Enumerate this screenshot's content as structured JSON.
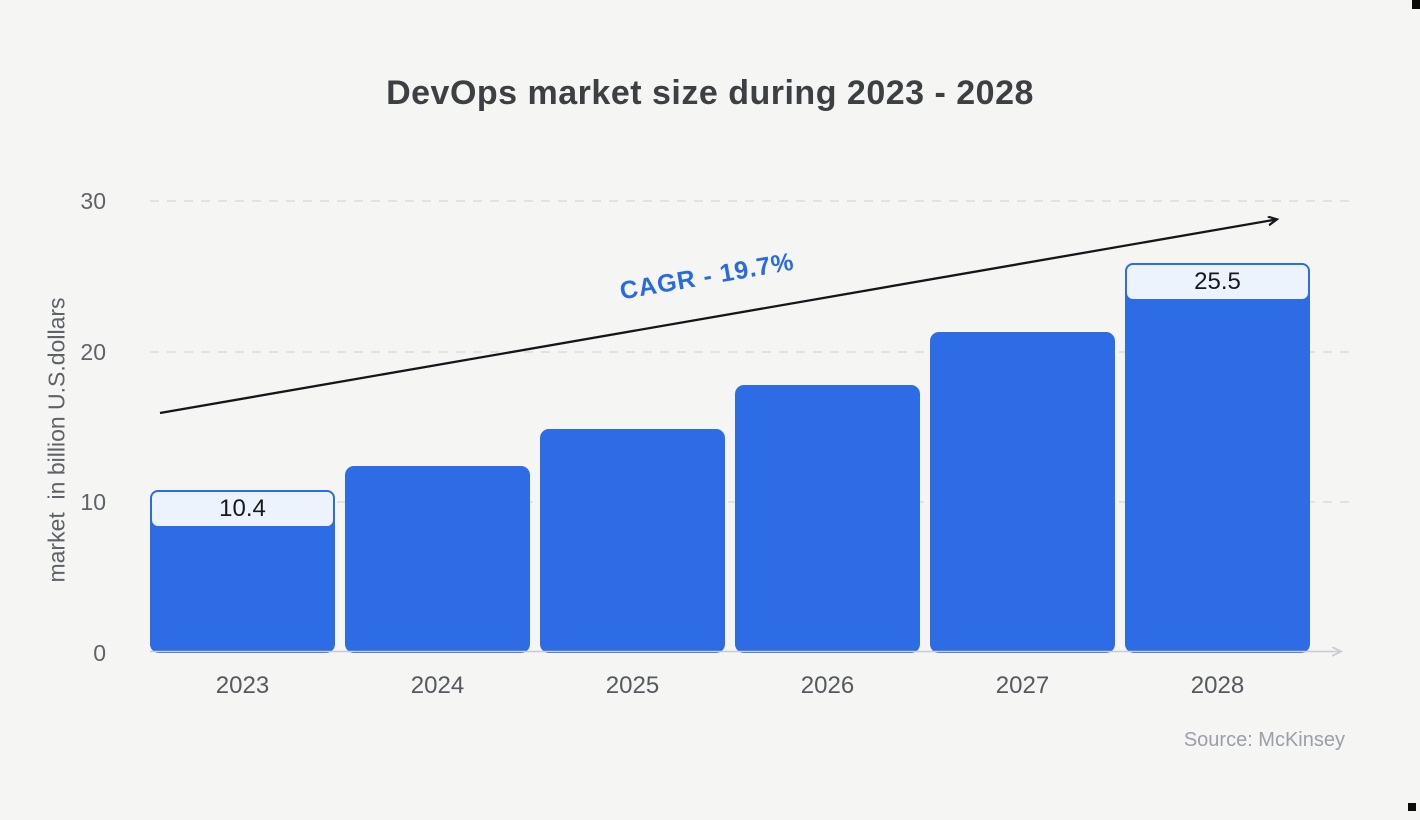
{
  "source": "Source: McKinsey",
  "colors": {
    "background": "#f5f5f3",
    "bar": "#2d6ce4",
    "label_box_fill": "#edf3fc",
    "label_box_border": "#2d6ce4",
    "annotation_blue": "#2a6ae0",
    "title_text": "#3c4043",
    "axis_text": "#5f6368",
    "source_text": "#9aa0a8",
    "grid": "#e2e2e3",
    "axis_line": "#c9ccd0",
    "trend_arrow": "#15161a"
  },
  "chart_data": {
    "type": "bar",
    "title": "DevOps market size during 2023 - 2028",
    "categories": [
      "2023",
      "2024",
      "2025",
      "2026",
      "2027",
      "2028"
    ],
    "values": [
      10.4,
      12.4,
      14.9,
      17.8,
      21.3,
      25.5
    ],
    "bar_labels": [
      "10.4",
      "",
      "",
      "",
      "",
      "25.5"
    ],
    "xlabel": "",
    "ylabel": "market  in billion U.S.dollars",
    "yticks": [
      0,
      10,
      20,
      30
    ],
    "ylim": [
      0,
      30
    ],
    "grid": "horizontal dashed",
    "legend": "none",
    "annotation": "CAGR - 19.7%",
    "annotation_note": "black trend arrow rising left-to-right above bars"
  }
}
